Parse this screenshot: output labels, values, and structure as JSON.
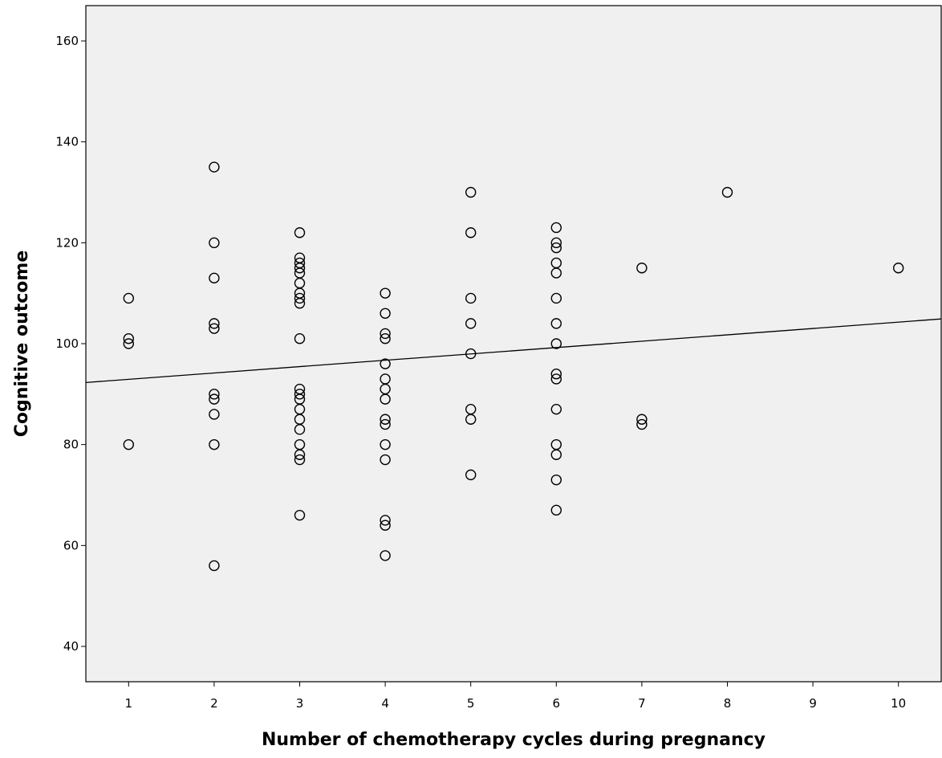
{
  "chart_data": {
    "type": "scatter",
    "xlabel": "Number of chemotherapy cycles during pregnancy",
    "ylabel": "Cognitive outcome",
    "xlim": [
      0.5,
      10.5
    ],
    "ylim": [
      33,
      167
    ],
    "xticks": [
      1,
      2,
      3,
      4,
      5,
      6,
      7,
      8,
      9,
      10
    ],
    "yticks": [
      40,
      60,
      80,
      100,
      120,
      140,
      160
    ],
    "grid": false,
    "legend": "none",
    "points": [
      {
        "x": 1,
        "y": 109
      },
      {
        "x": 1,
        "y": 101
      },
      {
        "x": 1,
        "y": 100
      },
      {
        "x": 1,
        "y": 80
      },
      {
        "x": 2,
        "y": 135
      },
      {
        "x": 2,
        "y": 120
      },
      {
        "x": 2,
        "y": 113
      },
      {
        "x": 2,
        "y": 104
      },
      {
        "x": 2,
        "y": 103
      },
      {
        "x": 2,
        "y": 90
      },
      {
        "x": 2,
        "y": 89
      },
      {
        "x": 2,
        "y": 86
      },
      {
        "x": 2,
        "y": 80
      },
      {
        "x": 2,
        "y": 56
      },
      {
        "x": 3,
        "y": 122
      },
      {
        "x": 3,
        "y": 117
      },
      {
        "x": 3,
        "y": 116
      },
      {
        "x": 3,
        "y": 115
      },
      {
        "x": 3,
        "y": 114
      },
      {
        "x": 3,
        "y": 112
      },
      {
        "x": 3,
        "y": 110
      },
      {
        "x": 3,
        "y": 109
      },
      {
        "x": 3,
        "y": 108
      },
      {
        "x": 3,
        "y": 101
      },
      {
        "x": 3,
        "y": 91
      },
      {
        "x": 3,
        "y": 90
      },
      {
        "x": 3,
        "y": 89
      },
      {
        "x": 3,
        "y": 87
      },
      {
        "x": 3,
        "y": 85
      },
      {
        "x": 3,
        "y": 83
      },
      {
        "x": 3,
        "y": 80
      },
      {
        "x": 3,
        "y": 78
      },
      {
        "x": 3,
        "y": 77
      },
      {
        "x": 3,
        "y": 66
      },
      {
        "x": 4,
        "y": 110
      },
      {
        "x": 4,
        "y": 106
      },
      {
        "x": 4,
        "y": 102
      },
      {
        "x": 4,
        "y": 101
      },
      {
        "x": 4,
        "y": 96
      },
      {
        "x": 4,
        "y": 93
      },
      {
        "x": 4,
        "y": 91
      },
      {
        "x": 4,
        "y": 89
      },
      {
        "x": 4,
        "y": 85
      },
      {
        "x": 4,
        "y": 84
      },
      {
        "x": 4,
        "y": 80
      },
      {
        "x": 4,
        "y": 77
      },
      {
        "x": 4,
        "y": 65
      },
      {
        "x": 4,
        "y": 64
      },
      {
        "x": 4,
        "y": 58
      },
      {
        "x": 5,
        "y": 130
      },
      {
        "x": 5,
        "y": 122
      },
      {
        "x": 5,
        "y": 109
      },
      {
        "x": 5,
        "y": 104
      },
      {
        "x": 5,
        "y": 98
      },
      {
        "x": 5,
        "y": 87
      },
      {
        "x": 5,
        "y": 85
      },
      {
        "x": 5,
        "y": 74
      },
      {
        "x": 6,
        "y": 123
      },
      {
        "x": 6,
        "y": 120
      },
      {
        "x": 6,
        "y": 119
      },
      {
        "x": 6,
        "y": 116
      },
      {
        "x": 6,
        "y": 114
      },
      {
        "x": 6,
        "y": 109
      },
      {
        "x": 6,
        "y": 104
      },
      {
        "x": 6,
        "y": 100
      },
      {
        "x": 6,
        "y": 94
      },
      {
        "x": 6,
        "y": 93
      },
      {
        "x": 6,
        "y": 87
      },
      {
        "x": 6,
        "y": 80
      },
      {
        "x": 6,
        "y": 78
      },
      {
        "x": 6,
        "y": 73
      },
      {
        "x": 6,
        "y": 67
      },
      {
        "x": 7,
        "y": 115
      },
      {
        "x": 7,
        "y": 85
      },
      {
        "x": 7,
        "y": 84
      },
      {
        "x": 8,
        "y": 130
      },
      {
        "x": 10,
        "y": 115
      }
    ],
    "fit_line": {
      "x": [
        0.5,
        10.5
      ],
      "y": [
        92.3,
        104.9
      ]
    }
  }
}
